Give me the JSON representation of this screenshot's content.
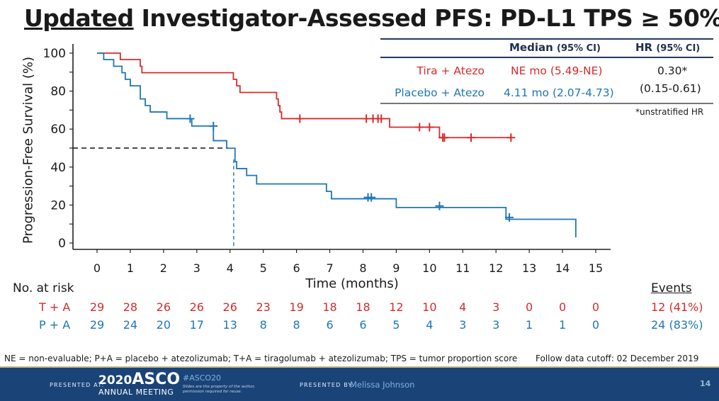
{
  "slide": {
    "title_underlined": "Updated",
    "title_rest": " Investigator-Assessed PFS: PD-L1 TPS ≥ 50%",
    "page_number": "14"
  },
  "summary_table": {
    "header_median": "Median",
    "header_median_ci": "(95% CI)",
    "header_hr": "HR",
    "header_hr_ci": "(95% CI)",
    "rows": [
      {
        "arm": "Tira + Atezo",
        "median": "NE mo (5.49-NE)"
      },
      {
        "arm": "Placebo + Atezo",
        "median": "4.11 mo (2.07-4.73)"
      }
    ],
    "hr_value": "0.30*",
    "hr_ci": "(0.15-0.61)",
    "hr_note": "*unstratified HR"
  },
  "risk_table": {
    "label": "No. at risk",
    "events_header": "Events",
    "rows": [
      {
        "label": "T + A",
        "values": [
          "29",
          "28",
          "26",
          "26",
          "26",
          "23",
          "19",
          "18",
          "18",
          "12",
          "10",
          "4",
          "3",
          "0",
          "0",
          "0"
        ],
        "events": "12 (41%)"
      },
      {
        "label": "P + A",
        "values": [
          "29",
          "24",
          "20",
          "17",
          "13",
          "8",
          "8",
          "6",
          "6",
          "5",
          "4",
          "3",
          "3",
          "1",
          "1",
          "0"
        ],
        "events": "24 (83%)"
      }
    ]
  },
  "footnotes": {
    "abbreviations": "NE = non-evaluable; P+A = placebo + atezolizumab; T+A = tiragolumab + atezolizumab; TPS = tumor proportion score",
    "cutoff": "Follow data cutoff: 02 December 2019"
  },
  "footer": {
    "presented_at": "PRESENTED AT:",
    "meeting_year": "2020",
    "meeting_brand": "ASCO",
    "meeting_name": "ANNUAL MEETING",
    "hashtag": "#ASCO20",
    "disclaimer_1": "Slides are the property of the author,",
    "disclaimer_2": "permission required for reuse.",
    "presented_by": "PRESENTED BY:",
    "presenter": "Melissa Johnson"
  },
  "colors": {
    "tira_atezo": "#d62b2b",
    "placebo_atezo": "#1f77b4",
    "footer_bg": "#1a4478"
  },
  "chart_data": {
    "type": "line",
    "subtype": "kaplan-meier-step",
    "title": "Updated Investigator-Assessed PFS: PD-L1 TPS ≥ 50%",
    "xlabel": "Time (months)",
    "ylabel": "Progression-Free Survival (%)",
    "xlim": [
      0,
      15
    ],
    "ylim": [
      0,
      100
    ],
    "x_ticks": [
      0,
      1,
      2,
      3,
      4,
      5,
      6,
      7,
      8,
      9,
      10,
      11,
      12,
      13,
      14,
      15
    ],
    "y_ticks": [
      0,
      20,
      40,
      60,
      80,
      100
    ],
    "grid": false,
    "median_reference": {
      "y": 50,
      "x": 4.11
    },
    "series": [
      {
        "name": "Tira + Atezo",
        "color": "#d62b2b",
        "steps": [
          [
            0,
            100
          ],
          [
            0.7,
            96.6
          ],
          [
            1.3,
            93.1
          ],
          [
            1.35,
            89.7
          ],
          [
            4.1,
            86.2
          ],
          [
            4.2,
            82.8
          ],
          [
            4.3,
            79.3
          ],
          [
            5.4,
            75.9
          ],
          [
            5.45,
            72.4
          ],
          [
            5.5,
            69.0
          ],
          [
            5.55,
            65.5
          ],
          [
            8.8,
            61.0
          ],
          [
            10.3,
            55.5
          ]
        ],
        "end_x": 12.5,
        "censored": [
          [
            6.1,
            65.5
          ],
          [
            8.1,
            65.5
          ],
          [
            8.3,
            65.5
          ],
          [
            8.45,
            65.5
          ],
          [
            8.55,
            65.5
          ],
          [
            9.7,
            61.0
          ],
          [
            10.0,
            61.0
          ],
          [
            10.4,
            55.5
          ],
          [
            10.45,
            55.5
          ],
          [
            11.25,
            55.5
          ],
          [
            12.45,
            55.5
          ]
        ]
      },
      {
        "name": "Placebo + Atezo",
        "color": "#1f77b4",
        "steps": [
          [
            0,
            100
          ],
          [
            0.2,
            96.6
          ],
          [
            0.5,
            93.1
          ],
          [
            0.75,
            89.7
          ],
          [
            0.85,
            86.2
          ],
          [
            1.0,
            82.8
          ],
          [
            1.3,
            75.9
          ],
          [
            1.45,
            72.4
          ],
          [
            1.6,
            69.0
          ],
          [
            2.1,
            65.5
          ],
          [
            2.85,
            61.6
          ],
          [
            3.5,
            53.9
          ],
          [
            3.9,
            49.9
          ],
          [
            4.15,
            42.8
          ],
          [
            4.2,
            39.2
          ],
          [
            4.5,
            35.6
          ],
          [
            4.8,
            31.1
          ],
          [
            6.9,
            27.2
          ],
          [
            7.05,
            23.3
          ],
          [
            9.0,
            18.7
          ],
          [
            12.3,
            12.5
          ]
        ],
        "end_x": 14.4,
        "final_drop_to": 0,
        "censored": [
          [
            2.8,
            65.5
          ],
          [
            3.5,
            61.6
          ],
          [
            8.15,
            24.0
          ],
          [
            8.25,
            24.0
          ],
          [
            10.3,
            19.5
          ],
          [
            12.4,
            13.5
          ]
        ]
      }
    ],
    "risk_table": {
      "times": [
        0,
        1,
        2,
        3,
        4,
        5,
        6,
        7,
        8,
        9,
        10,
        11,
        12,
        13,
        14,
        15
      ],
      "T + A": [
        29,
        28,
        26,
        26,
        26,
        23,
        19,
        18,
        18,
        12,
        10,
        4,
        3,
        0,
        0,
        0
      ],
      "P + A": [
        29,
        24,
        20,
        17,
        13,
        8,
        8,
        6,
        6,
        5,
        4,
        3,
        3,
        1,
        1,
        0
      ]
    },
    "events": {
      "T + A": "12 (41%)",
      "P + A": "24 (83%)"
    }
  }
}
